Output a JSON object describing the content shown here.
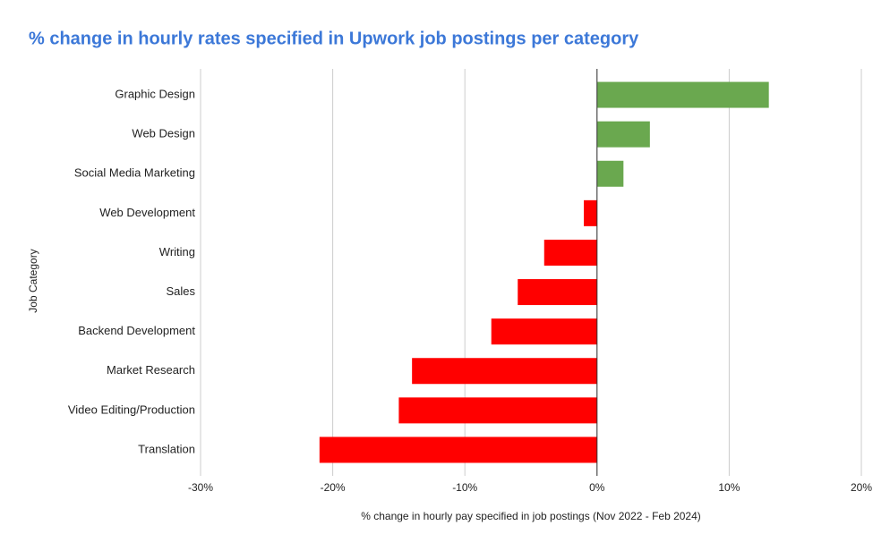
{
  "chart_data": {
    "type": "hbar",
    "title": "% change in hourly rates specified in Upwork job postings per category",
    "x_label": "% change in hourly pay specified in job postings (Nov 2022 - Feb 2024)",
    "y_label": "Job Category",
    "categories": [
      "Graphic Design",
      "Web Design",
      "Social Media Marketing",
      "Web Development",
      "Writing",
      "Sales",
      "Backend Development",
      "Market Research",
      "Video Editing/Production",
      "Translation"
    ],
    "values": [
      13,
      4,
      2,
      -1,
      -4,
      -6,
      -8,
      -14,
      -15,
      -21
    ],
    "colors": [
      "#6aa84f",
      "#6aa84f",
      "#6aa84f",
      "#ff0000",
      "#ff0000",
      "#ff0000",
      "#ff0000",
      "#ff0000",
      "#ff0000",
      "#ff0000"
    ],
    "xlim": [
      -30,
      20
    ],
    "xticks": [
      {
        "value": -30,
        "label": "-30%"
      },
      {
        "value": -20,
        "label": "-20%"
      },
      {
        "value": -10,
        "label": "-10%"
      },
      {
        "value": 0,
        "label": "0%"
      },
      {
        "value": 10,
        "label": "10%"
      },
      {
        "value": 20,
        "label": "20%"
      }
    ],
    "grid": true
  }
}
